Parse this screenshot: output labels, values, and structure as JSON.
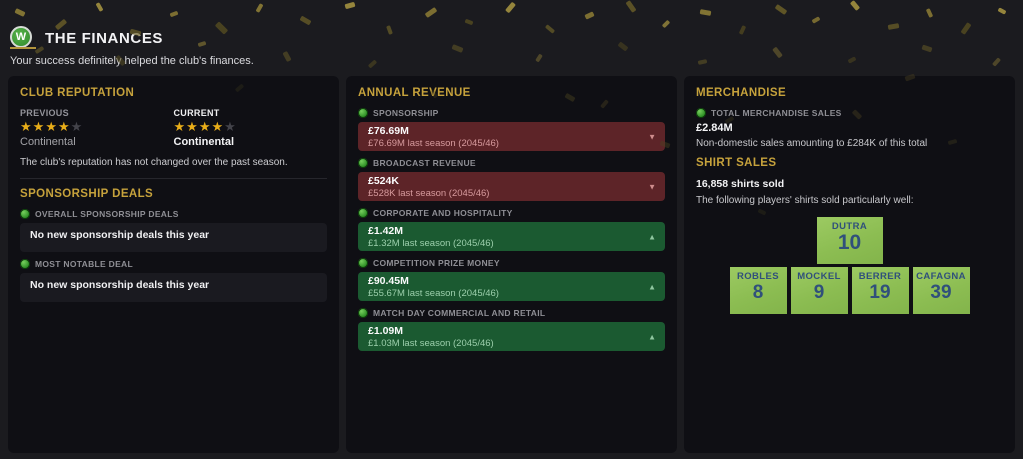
{
  "header": {
    "badge_letter": "W",
    "title": "THE FINANCES",
    "subtitle": "Your success definitely helped the club's finances."
  },
  "colors": {
    "accent_gold": "#c6a23c",
    "negative_red": "#5d2428",
    "positive_green": "#1b5a31",
    "shirt_green": "#8cbd52",
    "star_gold": "#e9ae19"
  },
  "club_reputation": {
    "heading": "CLUB REPUTATION",
    "previous": {
      "label": "PREVIOUS",
      "stars": 4,
      "stars_total": 5,
      "level": "Continental"
    },
    "current": {
      "label": "CURRENT",
      "stars": 4,
      "stars_total": 5,
      "level": "Continental"
    },
    "summary": "The club's reputation has not changed over the past season."
  },
  "sponsorship_deals": {
    "heading": "SPONSORSHIP DEALS",
    "items": [
      {
        "label": "OVERALL SPONSORSHIP DEALS",
        "value": "No new sponsorship deals this year"
      },
      {
        "label": "MOST NOTABLE DEAL",
        "value": "No new sponsorship deals this year"
      }
    ]
  },
  "annual_revenue": {
    "heading": "ANNUAL REVENUE",
    "items": [
      {
        "label": "SPONSORSHIP",
        "value": "£76.69M",
        "last_season": "£76.69M last season (2045/46)",
        "trend": "down"
      },
      {
        "label": "BROADCAST REVENUE",
        "value": "£524K",
        "last_season": "£528K last season (2045/46)",
        "trend": "down"
      },
      {
        "label": "CORPORATE AND HOSPITALITY",
        "value": "£1.42M",
        "last_season": "£1.32M last season (2045/46)",
        "trend": "up"
      },
      {
        "label": "COMPETITION PRIZE MONEY",
        "value": "£90.45M",
        "last_season": "£55.67M last season (2045/46)",
        "trend": "up"
      },
      {
        "label": "MATCH DAY COMMERCIAL AND RETAIL",
        "value": "£1.09M",
        "last_season": "£1.03M last season (2045/46)",
        "trend": "up"
      }
    ]
  },
  "merchandise": {
    "heading": "MERCHANDISE",
    "total_label": "TOTAL MERCHANDISE SALES",
    "total_value": "£2.84M",
    "total_note": "Non-domestic sales amounting to £284K of this total",
    "shirt_sales_heading": "SHIRT SALES",
    "shirts_sold": "16,858 shirts sold",
    "shirts_note": "The following players' shirts sold particularly well:",
    "top_shirt": {
      "name": "DUTRA",
      "number": "10"
    },
    "shirts": [
      {
        "name": "ROBLES",
        "number": "8"
      },
      {
        "name": "MOCKEL",
        "number": "9"
      },
      {
        "name": "BERRER",
        "number": "19"
      },
      {
        "name": "CAFAGNA",
        "number": "39"
      }
    ]
  }
}
